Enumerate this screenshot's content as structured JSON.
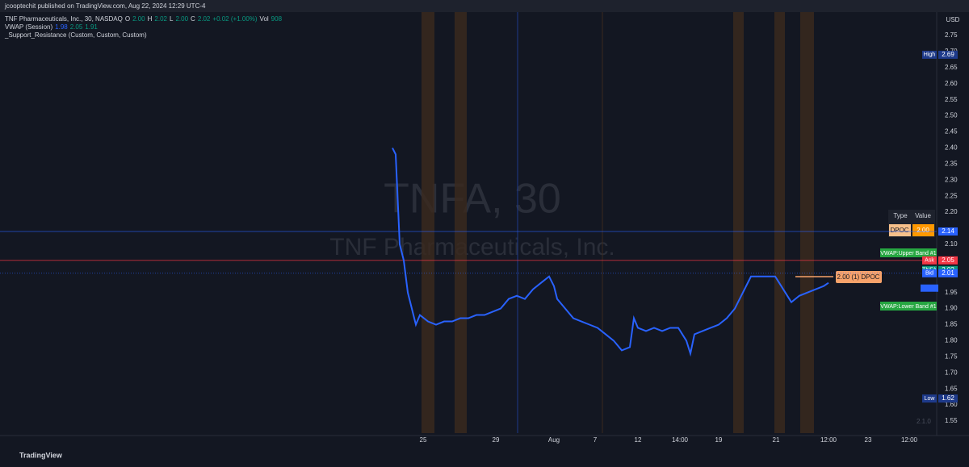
{
  "header": {
    "published": "jcooptechit published on TradingView.com, Aug 22, 2024 12:29 UTC-4",
    "symbol": "TNF Pharmaceuticals, Inc., 30, NASDAQ",
    "ohlc": [
      "O",
      "2.00",
      "H",
      "2.02",
      "L",
      "2.00",
      "C",
      "2.02",
      "+0.02 (+1.00%)",
      "Vol",
      "908"
    ],
    "indicators": [
      [
        "VWAP (Session)",
        "1.98",
        "2.05",
        "1.91"
      ],
      [
        "_Support_Resistance (Custom, Custom, Custom)"
      ]
    ]
  },
  "watermark": {
    "ticker": "TNFA, 30",
    "company": "TNF Pharmaceuticals, Inc."
  },
  "currency": "USD",
  "dpoc_table": {
    "headers": [
      "Type",
      "Value"
    ],
    "row": [
      "DPOC",
      "2.00"
    ]
  },
  "dpoc_annotation": "2.00 (1) DPOC",
  "band_labels": [
    "VWAP:Upper Band #1",
    "VWAP:Lower Band #1"
  ],
  "version": "2.1.0",
  "footer": "TradingView",
  "chart_data": {
    "type": "line",
    "x": [
      48.6,
      49,
      49.5,
      50,
      50.5,
      51.5,
      52,
      53,
      54,
      55,
      56,
      57,
      58,
      59,
      60,
      61,
      62,
      63,
      64,
      65,
      66,
      67,
      68,
      68.6,
      69,
      70,
      71,
      72,
      73,
      74,
      75,
      76,
      77,
      78,
      78.5,
      79,
      80,
      81,
      82,
      83,
      84,
      85,
      85.5,
      86,
      87,
      88,
      89,
      90,
      91,
      92,
      93,
      94,
      95,
      96,
      97,
      98,
      99,
      100,
      101,
      102,
      102.6
    ],
    "series": [
      {
        "name": "VWAP (Session)",
        "color": "#2962ff",
        "values": [
          2.4,
          2.38,
          2.1,
          2.05,
          1.95,
          1.85,
          1.88,
          1.86,
          1.85,
          1.86,
          1.86,
          1.87,
          1.87,
          1.88,
          1.88,
          1.89,
          1.9,
          1.93,
          1.94,
          1.93,
          1.96,
          1.98,
          2.0,
          1.97,
          1.93,
          1.9,
          1.87,
          1.86,
          1.85,
          1.84,
          1.82,
          1.8,
          1.77,
          1.78,
          1.87,
          1.84,
          1.83,
          1.84,
          1.83,
          1.84,
          1.84,
          1.8,
          1.76,
          1.82,
          1.83,
          1.84,
          1.85,
          1.87,
          1.9,
          1.95,
          2.0,
          2.0,
          2.0,
          2.0,
          1.96,
          1.92,
          1.94,
          1.95,
          1.96,
          1.97,
          1.98
        ]
      }
    ],
    "xlim": [
      0,
      116
    ],
    "ylim": [
      1.55,
      2.75
    ],
    "xticks": [
      {
        "value": 52.4,
        "label": "25"
      },
      {
        "value": 61.4,
        "label": "29"
      },
      {
        "value": 68.6,
        "label": "Aug"
      },
      {
        "value": 73.7,
        "label": "7"
      },
      {
        "value": 79,
        "label": "12"
      },
      {
        "value": 84.2,
        "label": "14:00"
      },
      {
        "value": 89,
        "label": "19"
      },
      {
        "value": 96.1,
        "label": "21"
      },
      {
        "value": 102.6,
        "label": "12:00"
      },
      {
        "value": 107.5,
        "label": "23"
      },
      {
        "value": 112.6,
        "label": "12:00"
      }
    ],
    "yticks": [
      2.75,
      {
        "value": 2.7,
        "label": "2.70"
      },
      2.65,
      {
        "value": 2.6,
        "label": "2.60"
      },
      2.55,
      {
        "value": 2.5,
        "label": "2.50"
      },
      2.45,
      {
        "value": 2.4,
        "label": "2.40"
      },
      2.35,
      {
        "value": 2.3,
        "label": "2.30"
      },
      2.25,
      {
        "value": 2.2,
        "label": "2.20"
      },
      {
        "value": 2.1,
        "label": "2.10"
      },
      1.95,
      {
        "value": 1.9,
        "label": "1.90"
      },
      1.85,
      {
        "value": 1.8,
        "label": "1.80"
      },
      1.75,
      {
        "value": 1.7,
        "label": "1.70"
      },
      1.65,
      {
        "value": 1.6,
        "label": "1.60"
      },
      1.55
    ],
    "price_labels": [
      {
        "tag": "High",
        "value": 2.69,
        "color": "#1e3a8a"
      },
      {
        "value": 2.14,
        "color": "#2962ff",
        "line": true
      },
      {
        "tag": "Ask",
        "value": 2.05,
        "color": "#f23645",
        "line": true
      },
      {
        "tag": "TNFA",
        "value": 2.02,
        "color": "#089981"
      },
      {
        "tag": "Bid",
        "value": 2.01,
        "color": "#2962ff",
        "line": true
      },
      {
        "tag": "Low",
        "value": 1.62,
        "color": "#1e3a8a"
      }
    ]
  }
}
